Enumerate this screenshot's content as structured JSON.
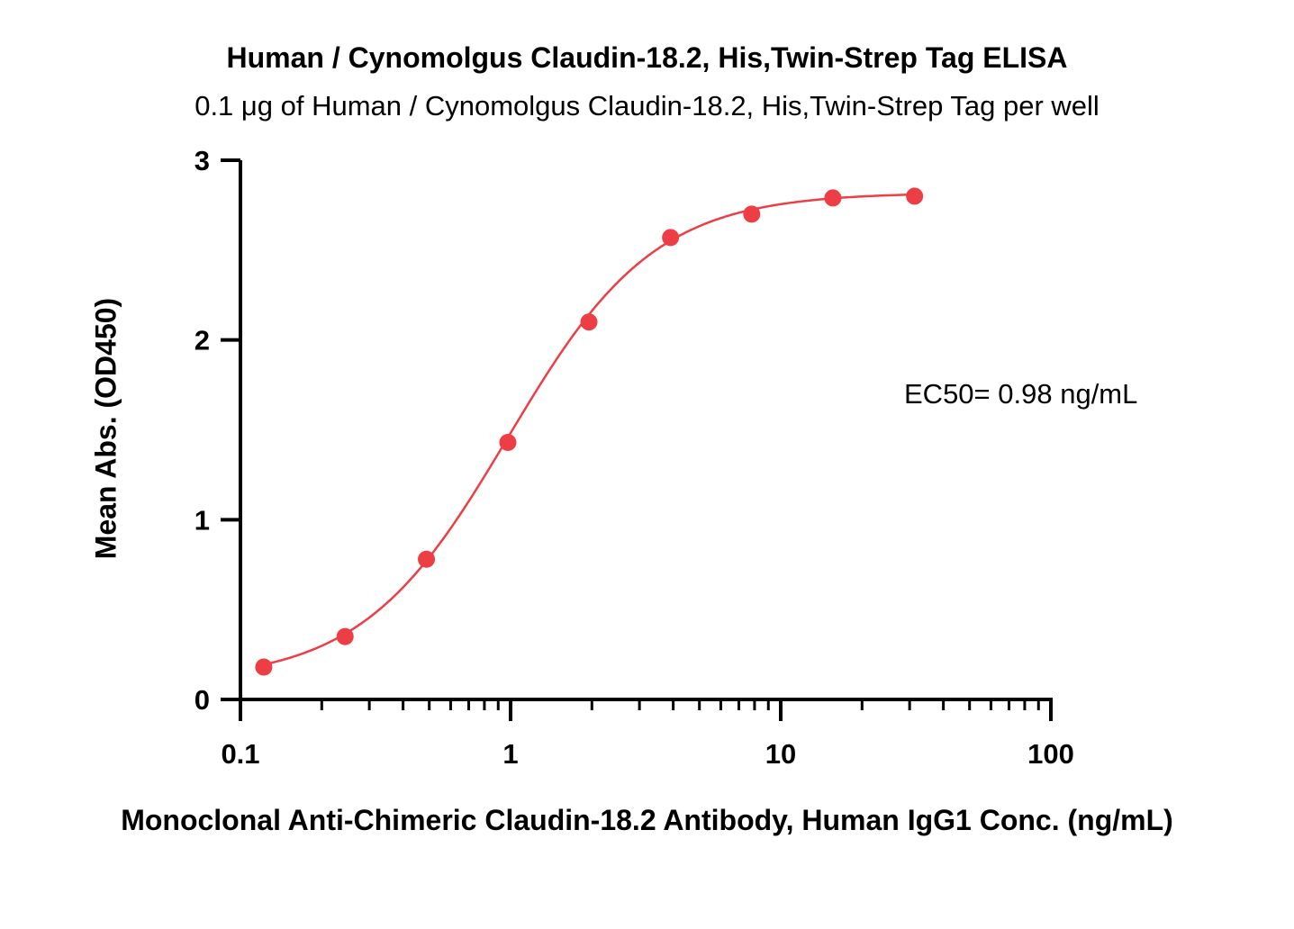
{
  "chart_data": {
    "type": "scatter",
    "title": "Human / Cynomolgus Claudin-18.2, His,Twin-Strep Tag ELISA",
    "subtitle": "0.1 μg of Human / Cynomolgus Claudin-18.2, His,Twin-Strep Tag per well",
    "xlabel": "Monoclonal Anti-Chimeric Claudin-18.2 Antibody, Human IgG1 Conc. (ng/mL)",
    "ylabel": "Mean Abs. (OD450)",
    "x_scale": "log",
    "xlim": [
      0.1,
      100
    ],
    "ylim": [
      0,
      3
    ],
    "x_ticks": [
      "0.1",
      "1",
      "10",
      "100"
    ],
    "y_ticks": [
      "0",
      "1",
      "2",
      "3"
    ],
    "grid": false,
    "color": "#ee3e45",
    "series": [
      {
        "x": [
          0.122,
          0.244,
          0.488,
          0.977,
          1.95,
          3.91,
          7.81,
          15.6,
          31.3
        ],
        "y": [
          0.18,
          0.35,
          0.78,
          1.43,
          2.1,
          2.57,
          2.7,
          2.79,
          2.8
        ]
      }
    ],
    "fit": {
      "model": "4PL",
      "bottom": 0.1,
      "top": 2.82,
      "ec50": 0.98,
      "hill": 1.6
    },
    "annotation": "EC50= 0.98 ng/mL"
  }
}
